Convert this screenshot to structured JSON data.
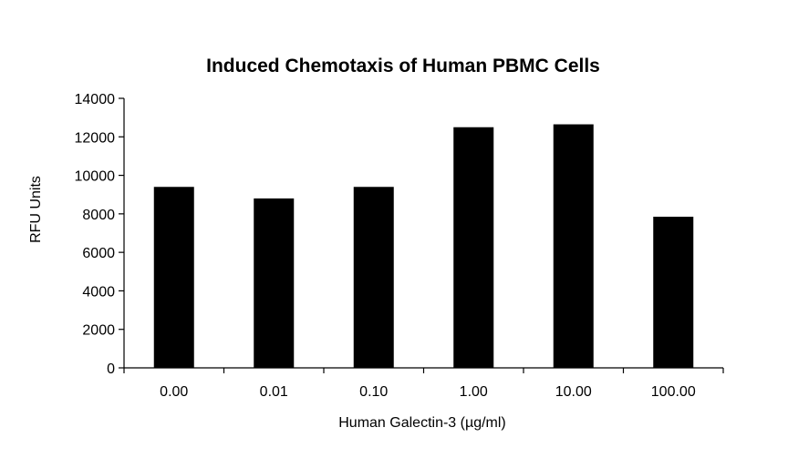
{
  "chart_data": {
    "type": "bar",
    "title": "Induced Chemotaxis of Human PBMC Cells",
    "xlabel": "Human Galectin-3 (µg/ml)",
    "ylabel": "RFU Units",
    "categories": [
      "0.00",
      "0.01",
      "0.10",
      "1.00",
      "10.00",
      "100.00"
    ],
    "values": [
      9400,
      8800,
      9400,
      12500,
      12650,
      7850
    ],
    "ylim": [
      0,
      14000
    ],
    "yticks": [
      "0",
      "2000",
      "4000",
      "6000",
      "8000",
      "10000",
      "12000",
      "14000"
    ],
    "grid": false,
    "legend": "none",
    "bar_color": "#000000"
  }
}
